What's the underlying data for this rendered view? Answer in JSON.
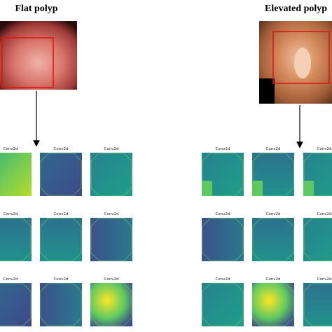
{
  "panels": [
    {
      "title": "Flat polyp",
      "maps": [
        "Conv2d",
        "Conv2d",
        "Conv2d",
        "Conv2d",
        "Conv2d",
        "Conv2d",
        "Conv2d",
        "Conv2d",
        "Conv2d"
      ]
    },
    {
      "title": "Elevated polyp",
      "maps": [
        "Conv2d",
        "Conv2d",
        "Conv2d",
        "Conv2d",
        "Conv2d",
        "Conv2d",
        "Conv2d",
        "Conv2d",
        "Conv2d"
      ]
    }
  ]
}
